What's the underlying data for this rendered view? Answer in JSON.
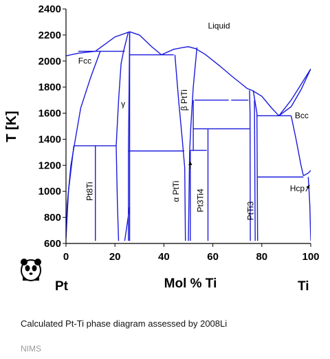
{
  "chart_data": {
    "type": "line",
    "subtype": "phase-diagram",
    "x_axis": {
      "label": "Mol % Ti",
      "range": [
        0,
        100
      ],
      "ticks": [
        0,
        20,
        40,
        60,
        80,
        100
      ],
      "left_end_label": "Pt",
      "right_end_label": "Ti"
    },
    "y_axis": {
      "label": "T [K]",
      "range": [
        600,
        2400
      ],
      "ticks": [
        600,
        800,
        1000,
        1200,
        1400,
        1600,
        1800,
        2000,
        2200,
        2400
      ]
    },
    "grid": false,
    "lines": [
      {
        "name": "liquidus-fcc",
        "points": [
          [
            0,
            2040
          ],
          [
            5,
            2060
          ],
          [
            12,
            2075
          ],
          [
            20,
            2185
          ],
          [
            26,
            2225
          ]
        ]
      },
      {
        "name": "liquidus-pt3ti-dome",
        "points": [
          [
            26,
            2225
          ],
          [
            30,
            2200
          ],
          [
            35,
            2110
          ],
          [
            39,
            2048
          ],
          [
            44,
            2090
          ],
          [
            48,
            2105
          ],
          [
            50,
            2110
          ],
          [
            53,
            2095
          ],
          [
            57,
            2050
          ],
          [
            63,
            1960
          ],
          [
            68,
            1880
          ],
          [
            71,
            1835
          ],
          [
            74,
            1790
          ],
          [
            76,
            1775
          ]
        ]
      },
      {
        "name": "liquidus-pti3",
        "points": [
          [
            76,
            1775
          ],
          [
            80,
            1730
          ],
          [
            84,
            1640
          ],
          [
            87,
            1580
          ]
        ]
      },
      {
        "name": "liquidus-bcc",
        "points": [
          [
            87,
            1580
          ],
          [
            92,
            1700
          ],
          [
            96,
            1820
          ],
          [
            100,
            1940
          ]
        ]
      },
      {
        "name": "solidus-bcc",
        "points": [
          [
            87,
            1580
          ],
          [
            92,
            1650
          ],
          [
            96,
            1780
          ],
          [
            100,
            1940
          ]
        ]
      },
      {
        "name": "fcc-solvus",
        "points": [
          [
            0,
            650
          ],
          [
            0.5,
            900
          ],
          [
            2,
            1200
          ],
          [
            6,
            1640
          ],
          [
            10,
            1870
          ],
          [
            14,
            2075
          ]
        ]
      },
      {
        "name": "fcc-solvus-low",
        "points": [
          [
            0,
            640
          ],
          [
            1,
            1000
          ],
          [
            3.2,
            1350
          ]
        ]
      },
      {
        "name": "gamma-left",
        "points": [
          [
            21.5,
            620
          ],
          [
            21,
            900
          ],
          [
            20.5,
            1350
          ],
          [
            21.5,
            1700
          ],
          [
            22.5,
            1980
          ],
          [
            23.5,
            2075
          ]
        ]
      },
      {
        "name": "gamma-left-top",
        "points": [
          [
            23.5,
            2075
          ],
          [
            24.5,
            2150
          ],
          [
            25.5,
            2225
          ]
        ]
      },
      {
        "name": "gamma-right",
        "points": [
          [
            25.5,
            620
          ],
          [
            25.5,
            1300
          ],
          [
            25.8,
            1800
          ],
          [
            26,
            2225
          ]
        ]
      },
      {
        "name": "line-24",
        "points": [
          [
            24,
            620
          ],
          [
            26,
            880
          ]
        ]
      },
      {
        "name": "beta-ptti-left",
        "points": [
          [
            44.5,
            2048
          ],
          [
            46,
            1700
          ],
          [
            47.5,
            1400
          ],
          [
            48.5,
            1180
          ],
          [
            48.8,
            620
          ]
        ]
      },
      {
        "name": "beta-ptti-right",
        "points": [
          [
            53.5,
            2105
          ],
          [
            52,
            1800
          ],
          [
            51,
            1500
          ],
          [
            50.5,
            1300
          ],
          [
            50,
            620
          ]
        ]
      },
      {
        "name": "alpha-ptti-right",
        "points": [
          [
            50.8,
            1310
          ],
          [
            50.8,
            620
          ]
        ]
      },
      {
        "name": "pt3ti4-left",
        "points": [
          [
            58,
            1480
          ],
          [
            58,
            620
          ]
        ]
      },
      {
        "name": "pti3-left",
        "points": [
          [
            75,
            1775
          ],
          [
            75.2,
            1600
          ],
          [
            75.3,
            620
          ]
        ]
      },
      {
        "name": "pti3-right",
        "points": [
          [
            76.5,
            1775
          ],
          [
            78,
            1600
          ],
          [
            78.3,
            620
          ]
        ]
      },
      {
        "name": "pti3-inner",
        "points": [
          [
            77,
            1700
          ],
          [
            77.3,
            620
          ]
        ]
      },
      {
        "name": "bcc-solvus",
        "points": [
          [
            92,
            1580
          ],
          [
            94,
            1400
          ],
          [
            96,
            1200
          ],
          [
            97,
            1120
          ]
        ]
      },
      {
        "name": "hcp-bcc",
        "points": [
          [
            97,
            1120
          ],
          [
            99,
            1140
          ],
          [
            100,
            1160
          ]
        ]
      },
      {
        "name": "hcp-solvus",
        "points": [
          [
            100,
            620
          ],
          [
            99.6,
            900
          ],
          [
            99,
            1110
          ]
        ]
      }
    ],
    "horizontals": [
      {
        "x": [
          5,
          24
        ],
        "y": 2075
      },
      {
        "x": [
          26,
          44
        ],
        "y": 2048
      },
      {
        "x": [
          3.2,
          20.5
        ],
        "y": 1350
      },
      {
        "x": [
          25.5,
          48.3
        ],
        "y": 1310
      },
      {
        "x": [
          50.5,
          57.5
        ],
        "y": 1315
      },
      {
        "x": [
          52.5,
          66.5
        ],
        "y": 1700
      },
      {
        "x": [
          67.5,
          74.5
        ],
        "y": 1700
      },
      {
        "x": [
          52,
          75
        ],
        "y": 1480
      },
      {
        "x": [
          78,
          92
        ],
        "y": 1580
      },
      {
        "x": [
          78.3,
          97
        ],
        "y": 1110
      }
    ],
    "verticals": [
      {
        "x": 12,
        "y": [
          620,
          1350
        ]
      },
      {
        "x": 26,
        "y": [
          620,
          2225
        ]
      },
      {
        "x": 52,
        "y": [
          1310,
          1700
        ]
      }
    ],
    "arrows": [
      {
        "from": [
          50.8,
          1170
        ],
        "to": [
          50.8,
          1230
        ]
      },
      {
        "from": [
          98,
          1000
        ],
        "to": [
          99.5,
          1050
        ]
      }
    ],
    "labels": [
      {
        "text": "Liquid",
        "x": 58,
        "y": 2250
      },
      {
        "text": "Fcc",
        "x": 5,
        "y": 1980
      },
      {
        "text": "Bcc",
        "x": 93.5,
        "y": 1560
      },
      {
        "text": "Hcp",
        "x": 91.5,
        "y": 1000
      },
      {
        "text": "γ",
        "x": 22.5,
        "y": 1650
      },
      {
        "text": "β PtTi",
        "x": 49.5,
        "y": 1700,
        "rotate": -90
      },
      {
        "text": "α PtTi",
        "x": 46,
        "y": 1000,
        "rotate": -90
      },
      {
        "text": "Pt8Ti",
        "x": 10.8,
        "y": 1000,
        "rotate": -90
      },
      {
        "text": "Pt3Ti4",
        "x": 56,
        "y": 930,
        "rotate": -90
      },
      {
        "text": "PtTi3",
        "x": 76.5,
        "y": 850,
        "rotate": -90
      }
    ]
  },
  "element_left": "Pt",
  "element_right": "Ti",
  "caption": "Calculated Pt-Ti phase diagram assessed by 2008Li",
  "credit": "NIMS",
  "colors": {
    "lines": "#1a1adc",
    "axes": "#000000",
    "text": "#000000",
    "credit": "#9a9a9a"
  }
}
